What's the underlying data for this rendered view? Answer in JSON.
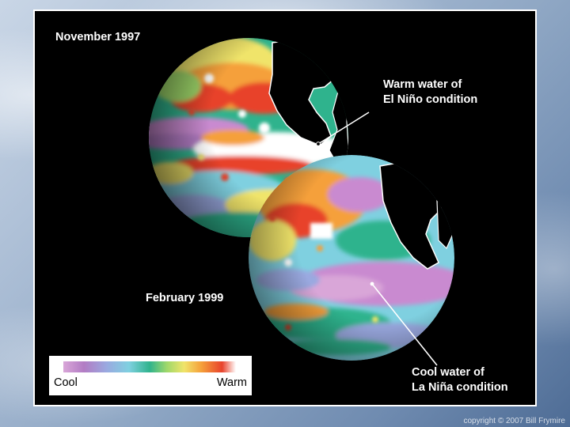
{
  "labels": {
    "globe_1_date": "November 1997",
    "globe_2_date": "February 1999",
    "warm_callout": [
      "Warm water of",
      "El Niño condition"
    ],
    "cool_callout": [
      "Cool water of",
      "La Niña condition"
    ]
  },
  "legend": {
    "cool_label": "Cool",
    "warm_label": "Warm",
    "gradient_colors": [
      "#d9a6d8",
      "#b27cc4",
      "#9aa9e0",
      "#7fd0e0",
      "#2fb38d",
      "#9fd86a",
      "#f0e46a",
      "#f5a03a",
      "#e8432c",
      "#ffffff"
    ]
  },
  "colors": {
    "land": "#000000",
    "coast_outline": "#ffffff",
    "ocean_warm_peak": "#ffffff",
    "ocean_cool_peak": "#c98ad0"
  },
  "copyright": "copyright © 2007 Bill Frymire"
}
